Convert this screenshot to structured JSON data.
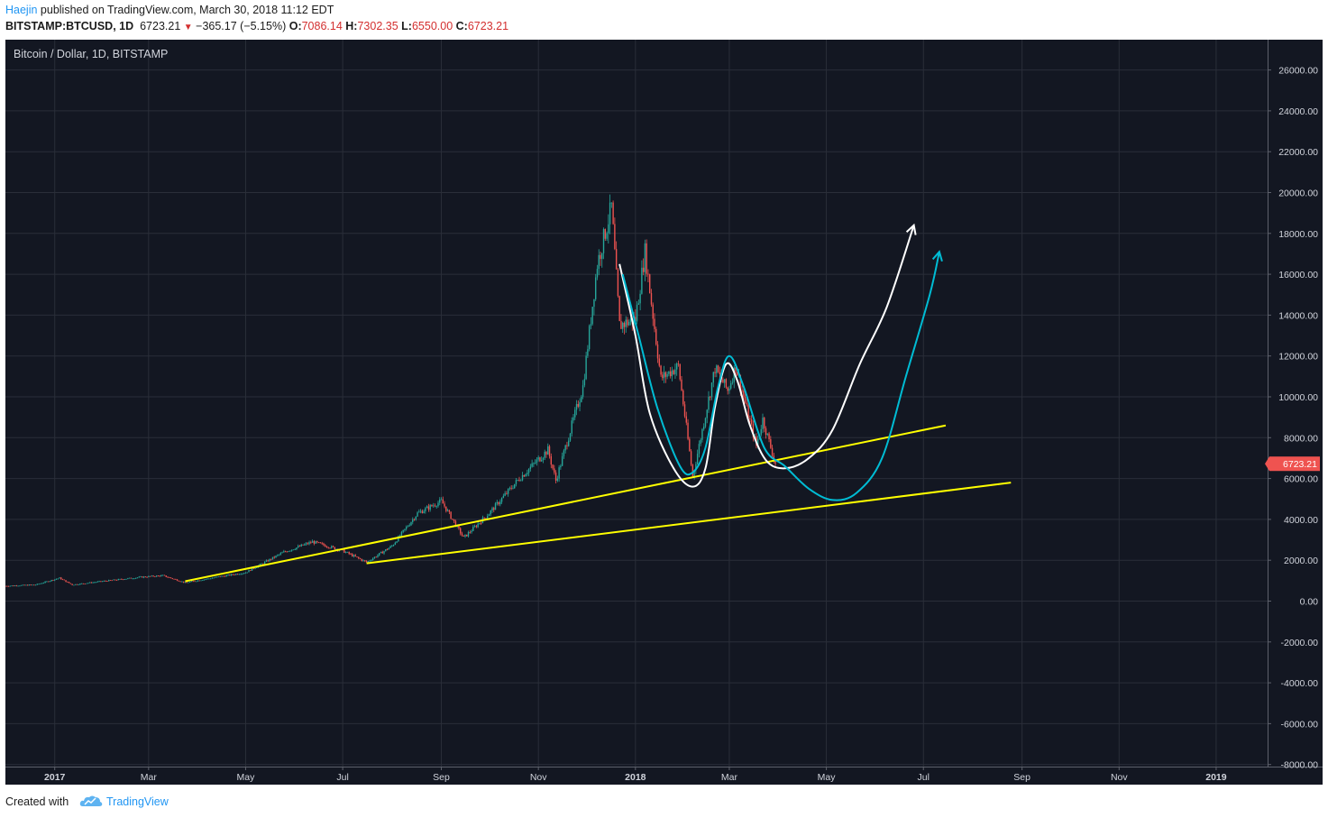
{
  "header": {
    "author": "Haejin",
    "published_text": " published on TradingView.com, March 30, 2018 11:12 EDT",
    "symbol": "BITSTAMP:BTCUSD, 1D",
    "last": "6723.21",
    "change": "−365.17 (−5.15%)",
    "open_label": "O:",
    "open": "7086.14",
    "high_label": "H:",
    "high": "7302.35",
    "low_label": "L:",
    "low": "6550.00",
    "close_label": "C:",
    "close": "6723.21"
  },
  "chart_data": {
    "type": "candlestick",
    "title": "Bitcoin / Dollar, 1D, BITSTAMP",
    "y_ticks": [
      "26000.00",
      "24000.00",
      "22000.00",
      "20000.00",
      "18000.00",
      "16000.00",
      "14000.00",
      "12000.00",
      "10000.00",
      "8000.00",
      "6000.00",
      "4000.00",
      "2000.00",
      "0.00",
      "-2000.00",
      "-4000.00",
      "-6000.00",
      "-8000.00"
    ],
    "ylim": [
      -8000,
      26500
    ],
    "x_ticks": [
      "2017",
      "Mar",
      "May",
      "Jul",
      "Sep",
      "Nov",
      "2018",
      "Mar",
      "May",
      "Jul",
      "Sep",
      "Nov",
      "2019"
    ],
    "last_price_label": "6723.21",
    "colors": {
      "background": "#131722",
      "grid": "#2a2e39",
      "up": "#26a69a",
      "down": "#ef5350",
      "trendline": "#ffff00",
      "white_path": "#ffffff",
      "cyan_path": "#00bcd4",
      "price_tag": "#ef5350"
    },
    "price_path": [
      [
        "2016-12-01",
        740
      ],
      [
        "2016-12-20",
        800
      ],
      [
        "2017-01-04",
        1130
      ],
      [
        "2017-01-12",
        800
      ],
      [
        "2017-02-01",
        980
      ],
      [
        "2017-02-25",
        1180
      ],
      [
        "2017-03-10",
        1250
      ],
      [
        "2017-03-24",
        900
      ],
      [
        "2017-04-15",
        1200
      ],
      [
        "2017-05-01",
        1400
      ],
      [
        "2017-05-25",
        2400
      ],
      [
        "2017-06-12",
        2900
      ],
      [
        "2017-06-30",
        2500
      ],
      [
        "2017-07-16",
        1900
      ],
      [
        "2017-08-01",
        2700
      ],
      [
        "2017-08-17",
        4300
      ],
      [
        "2017-09-01",
        4900
      ],
      [
        "2017-09-15",
        3100
      ],
      [
        "2017-10-01",
        4300
      ],
      [
        "2017-10-20",
        6000
      ],
      [
        "2017-11-07",
        7400
      ],
      [
        "2017-11-12",
        5900
      ],
      [
        "2017-11-29",
        10500
      ],
      [
        "2017-12-08",
        16500
      ],
      [
        "2017-12-17",
        19300
      ],
      [
        "2017-12-22",
        13500
      ],
      [
        "2018-01-01",
        13800
      ],
      [
        "2018-01-07",
        17100
      ],
      [
        "2018-01-17",
        10900
      ],
      [
        "2018-01-28",
        11500
      ],
      [
        "2018-02-06",
        6100
      ],
      [
        "2018-02-20",
        11400
      ],
      [
        "2018-02-28",
        10300
      ],
      [
        "2018-03-05",
        11500
      ],
      [
        "2018-03-18",
        7600
      ],
      [
        "2018-03-22",
        8900
      ],
      [
        "2018-03-30",
        6723
      ]
    ],
    "trendlines": [
      [
        [
          "2017-03-24",
          970
        ],
        [
          "2018-07-15",
          8600
        ]
      ],
      [
        [
          "2017-07-16",
          1850
        ],
        [
          "2018-08-25",
          5800
        ]
      ]
    ],
    "white_path": [
      [
        "2017-12-22",
        16500
      ],
      [
        "2018-01-01",
        13000
      ],
      [
        "2018-01-10",
        9200
      ],
      [
        "2018-01-25",
        6500
      ],
      [
        "2018-02-06",
        5600
      ],
      [
        "2018-02-14",
        6500
      ],
      [
        "2018-02-20",
        9500
      ],
      [
        "2018-02-27",
        11600
      ],
      [
        "2018-03-06",
        10800
      ],
      [
        "2018-03-14",
        8600
      ],
      [
        "2018-03-24",
        6900
      ],
      [
        "2018-04-05",
        6500
      ],
      [
        "2018-04-20",
        7000
      ],
      [
        "2018-05-05",
        8400
      ],
      [
        "2018-05-22",
        11600
      ],
      [
        "2018-06-08",
        14400
      ],
      [
        "2018-06-25",
        18400
      ]
    ],
    "cyan_path": [
      [
        "2017-12-24",
        16000
      ],
      [
        "2018-01-03",
        13000
      ],
      [
        "2018-01-15",
        9400
      ],
      [
        "2018-01-29",
        6600
      ],
      [
        "2018-02-06",
        6300
      ],
      [
        "2018-02-14",
        7500
      ],
      [
        "2018-02-22",
        10500
      ],
      [
        "2018-03-01",
        12000
      ],
      [
        "2018-03-10",
        10500
      ],
      [
        "2018-03-23",
        7500
      ],
      [
        "2018-04-05",
        6600
      ],
      [
        "2018-04-20",
        5500
      ],
      [
        "2018-05-05",
        4950
      ],
      [
        "2018-05-20",
        5300
      ],
      [
        "2018-06-05",
        7000
      ],
      [
        "2018-06-20",
        11000
      ],
      [
        "2018-07-05",
        15000
      ],
      [
        "2018-07-11",
        17100
      ]
    ]
  },
  "footer": {
    "created_with": "Created with",
    "brand": "TradingView"
  }
}
